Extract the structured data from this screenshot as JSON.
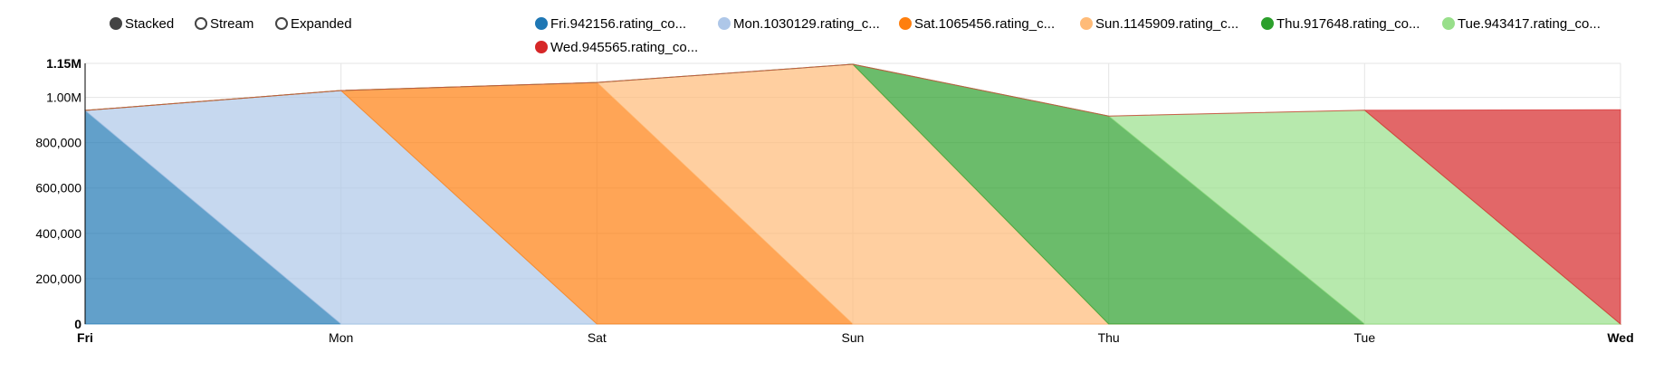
{
  "controls": {
    "options": [
      {
        "label": "Stacked",
        "selected": true
      },
      {
        "label": "Stream",
        "selected": false
      },
      {
        "label": "Expanded",
        "selected": false
      }
    ]
  },
  "chart_data": {
    "type": "area",
    "mode": "stacked",
    "categories": [
      "Fri",
      "Mon",
      "Sat",
      "Sun",
      "Thu",
      "Tue",
      "Wed"
    ],
    "series": [
      {
        "name": "Fri.942156.rating_co...",
        "color": "#1f77b4",
        "values": [
          942156,
          0,
          0,
          0,
          0,
          0,
          0
        ]
      },
      {
        "name": "Mon.1030129.rating_c...",
        "color": "#aec7e8",
        "values": [
          0,
          1030129,
          0,
          0,
          0,
          0,
          0
        ]
      },
      {
        "name": "Sat.1065456.rating_c...",
        "color": "#ff7f0e",
        "values": [
          0,
          0,
          1065456,
          0,
          0,
          0,
          0
        ]
      },
      {
        "name": "Sun.1145909.rating_c...",
        "color": "#ffbb78",
        "values": [
          0,
          0,
          0,
          1145909,
          0,
          0,
          0
        ]
      },
      {
        "name": "Thu.917648.rating_co...",
        "color": "#2ca02c",
        "values": [
          0,
          0,
          0,
          0,
          917648,
          0,
          0
        ]
      },
      {
        "name": "Tue.943417.rating_co...",
        "color": "#98df8a",
        "values": [
          0,
          0,
          0,
          0,
          0,
          943417,
          0
        ]
      },
      {
        "name": "Wed.945565.rating_co...",
        "color": "#d62728",
        "values": [
          0,
          0,
          0,
          0,
          0,
          0,
          945565
        ]
      }
    ],
    "y_ticks": [
      {
        "value": 0,
        "label": "0"
      },
      {
        "value": 200000,
        "label": "200,000"
      },
      {
        "value": 400000,
        "label": "400,000"
      },
      {
        "value": 600000,
        "label": "600,000"
      },
      {
        "value": 800000,
        "label": "800,000"
      },
      {
        "value": 1000000,
        "label": "1.00M"
      },
      {
        "value": 1150000,
        "label": "1.15M"
      }
    ],
    "ylim": [
      0,
      1150000
    ],
    "grid": true,
    "legend_position": "top-right"
  }
}
